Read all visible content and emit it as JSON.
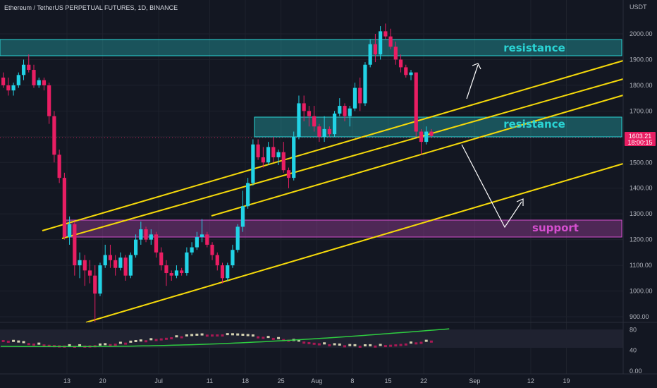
{
  "header": {
    "title": "Ethereum / TetherUS PERPETUAL FUTURES, 1D, BINANCE"
  },
  "axis": {
    "unit": "USDT"
  },
  "colors": {
    "background": "#131722",
    "up": "#22d3e6",
    "down": "#e91e63",
    "channel": "#f5d90a",
    "resistance": "#2ad4d4",
    "support": "#d64fd0",
    "indicator_line": "#2ecc40",
    "arrow": "#ffffff"
  },
  "chart_data": {
    "type": "candlestick",
    "title": "Ethereum / TetherUS PERPETUAL FUTURES, 1D, BINANCE",
    "y_unit": "USDT",
    "ylim": [
      870,
      2050
    ],
    "y_ticks": [
      "2000.00",
      "1900.00",
      "1800.00",
      "1700.00",
      "1600.00",
      "1500.00",
      "1400.00",
      "1300.00",
      "1200.00",
      "1100.00",
      "1000.00",
      "900.00"
    ],
    "x_ticks": [
      {
        "label": "13",
        "day": 13
      },
      {
        "label": "20",
        "day": 20
      },
      {
        "label": "Jul",
        "day": 31
      },
      {
        "label": "11",
        "day": 41
      },
      {
        "label": "18",
        "day": 48
      },
      {
        "label": "25",
        "day": 55
      },
      {
        "label": "Aug",
        "day": 62
      },
      {
        "label": "8",
        "day": 69
      },
      {
        "label": "15",
        "day": 76
      },
      {
        "label": "22",
        "day": 83
      },
      {
        "label": "Sep",
        "day": 93
      },
      {
        "label": "12",
        "day": 104
      },
      {
        "label": "19",
        "day": 111
      }
    ],
    "candles": [
      [
        1830,
        1850,
        1790,
        1800
      ],
      [
        1800,
        1830,
        1760,
        1780
      ],
      [
        1780,
        1810,
        1760,
        1800
      ],
      [
        1800,
        1850,
        1790,
        1840
      ],
      [
        1840,
        1900,
        1820,
        1880
      ],
      [
        1880,
        1920,
        1850,
        1860
      ],
      [
        1860,
        1880,
        1790,
        1800
      ],
      [
        1800,
        1830,
        1790,
        1820
      ],
      [
        1820,
        1830,
        1780,
        1800
      ],
      [
        1800,
        1810,
        1650,
        1680
      ],
      [
        1680,
        1700,
        1500,
        1530
      ],
      [
        1530,
        1550,
        1420,
        1440
      ],
      [
        1440,
        1460,
        1200,
        1210
      ],
      [
        1210,
        1290,
        1180,
        1260
      ],
      [
        1260,
        1270,
        1060,
        1100
      ],
      [
        1100,
        1150,
        1050,
        1120
      ],
      [
        1120,
        1140,
        1020,
        1080
      ],
      [
        1080,
        1120,
        1030,
        1060
      ],
      [
        1060,
        1100,
        880,
        990
      ],
      [
        990,
        1110,
        980,
        1100
      ],
      [
        1100,
        1180,
        1090,
        1140
      ],
      [
        1140,
        1180,
        1090,
        1120
      ],
      [
        1120,
        1140,
        1060,
        1090
      ],
      [
        1090,
        1150,
        1080,
        1130
      ],
      [
        1130,
        1140,
        1040,
        1060
      ],
      [
        1060,
        1150,
        1050,
        1140
      ],
      [
        1140,
        1220,
        1130,
        1200
      ],
      [
        1200,
        1270,
        1180,
        1240
      ],
      [
        1240,
        1250,
        1190,
        1200
      ],
      [
        1200,
        1240,
        1180,
        1220
      ],
      [
        1220,
        1230,
        1130,
        1150
      ],
      [
        1150,
        1170,
        1080,
        1100
      ],
      [
        1100,
        1120,
        1020,
        1070
      ],
      [
        1070,
        1080,
        1040,
        1060
      ],
      [
        1060,
        1100,
        1050,
        1080
      ],
      [
        1080,
        1090,
        1060,
        1070
      ],
      [
        1070,
        1170,
        1060,
        1150
      ],
      [
        1150,
        1190,
        1140,
        1170
      ],
      [
        1170,
        1230,
        1160,
        1210
      ],
      [
        1210,
        1280,
        1190,
        1220
      ],
      [
        1220,
        1230,
        1170,
        1180
      ],
      [
        1180,
        1190,
        1120,
        1140
      ],
      [
        1140,
        1150,
        1080,
        1100
      ],
      [
        1100,
        1110,
        1030,
        1050
      ],
      [
        1050,
        1110,
        1040,
        1100
      ],
      [
        1100,
        1180,
        1090,
        1160
      ],
      [
        1160,
        1260,
        1150,
        1250
      ],
      [
        1250,
        1390,
        1230,
        1330
      ],
      [
        1330,
        1440,
        1320,
        1420
      ],
      [
        1420,
        1590,
        1410,
        1570
      ],
      [
        1570,
        1590,
        1510,
        1520
      ],
      [
        1520,
        1560,
        1480,
        1500
      ],
      [
        1500,
        1580,
        1490,
        1560
      ],
      [
        1560,
        1600,
        1500,
        1520
      ],
      [
        1520,
        1550,
        1490,
        1540
      ],
      [
        1540,
        1580,
        1460,
        1470
      ],
      [
        1470,
        1480,
        1400,
        1440
      ],
      [
        1440,
        1620,
        1430,
        1600
      ],
      [
        1600,
        1760,
        1590,
        1730
      ],
      [
        1730,
        1760,
        1660,
        1700
      ],
      [
        1700,
        1720,
        1640,
        1680
      ],
      [
        1680,
        1720,
        1620,
        1640
      ],
      [
        1640,
        1650,
        1580,
        1600
      ],
      [
        1600,
        1680,
        1580,
        1630
      ],
      [
        1630,
        1640,
        1600,
        1610
      ],
      [
        1610,
        1700,
        1600,
        1690
      ],
      [
        1690,
        1750,
        1680,
        1720
      ],
      [
        1720,
        1730,
        1660,
        1680
      ],
      [
        1680,
        1720,
        1640,
        1710
      ],
      [
        1710,
        1810,
        1700,
        1790
      ],
      [
        1790,
        1830,
        1700,
        1730
      ],
      [
        1730,
        1890,
        1720,
        1880
      ],
      [
        1880,
        1980,
        1870,
        1960
      ],
      [
        1960,
        2000,
        1890,
        1920
      ],
      [
        1920,
        2030,
        1900,
        2010
      ],
      [
        2010,
        2040,
        1980,
        1990
      ],
      [
        1990,
        2020,
        1940,
        1950
      ],
      [
        1950,
        1970,
        1880,
        1900
      ],
      [
        1900,
        1920,
        1850,
        1870
      ],
      [
        1870,
        1880,
        1830,
        1840
      ],
      [
        1840,
        1860,
        1820,
        1850
      ],
      [
        1850,
        1850,
        1600,
        1620
      ],
      [
        1620,
        1630,
        1530,
        1580
      ],
      [
        1580,
        1640,
        1570,
        1620
      ],
      [
        1620,
        1630,
        1595,
        1603
      ]
    ],
    "indicator": {
      "ticks": [
        "80",
        "40",
        "0.00"
      ],
      "ylim": [
        0,
        90
      ],
      "ma_from": 25,
      "ma_to": 68
    },
    "price_label": "1603.21",
    "countdown": "18:00:15"
  },
  "annotations": {
    "resistance_top": "resistance",
    "resistance_mid": "resistance",
    "support": "support"
  }
}
